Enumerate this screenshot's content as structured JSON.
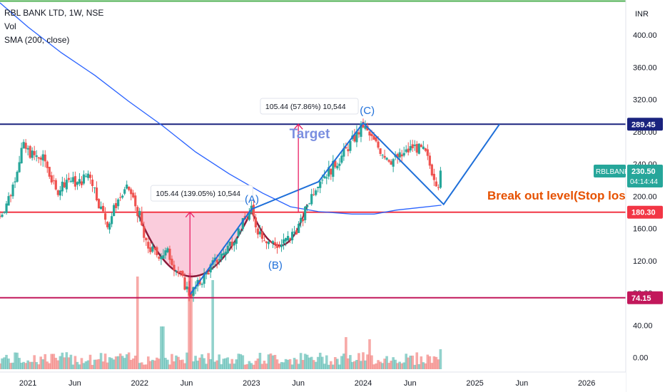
{
  "legend": {
    "symbol_line": "RBL BANK LTD, 1W, NSE",
    "vol_label": "Vol",
    "sma_label": "SMA (200, close)"
  },
  "currency": "INR",
  "colors": {
    "up": "#26a69a",
    "down": "#ef5350",
    "sma": "#2962ff",
    "resistance": "#1a237e",
    "breakout": "#f23645",
    "support": "#c2185b",
    "cup_fill": "#f8bbd0",
    "pattern_line": "#1e6fd9",
    "breakout_text": "#e65100"
  },
  "chart_data": {
    "type": "candlestick",
    "y_axis": {
      "min": -18,
      "max": 440,
      "ticks": [
        0,
        40,
        80,
        120,
        160,
        200,
        240,
        280,
        320,
        360,
        400
      ],
      "tick_labels": [
        "0.00",
        "40.00",
        "80.00",
        "120.00",
        "160.00",
        "200.00",
        "240.00",
        "280.00",
        "320.00",
        "360.00",
        "400.00"
      ]
    },
    "x_axis": {
      "start": 2020.75,
      "end": 2026.35,
      "ticks": [
        2021.0,
        2021.42,
        2022.0,
        2022.42,
        2023.0,
        2023.42,
        2024.0,
        2024.42,
        2025.0,
        2025.42,
        2026.0
      ],
      "tick_labels": [
        "2021",
        "Jun",
        "2022",
        "Jun",
        "2023",
        "Jun",
        "2024",
        "Jun",
        "2025",
        "Jun",
        "2026"
      ]
    },
    "price_path": [
      [
        2020.75,
        175
      ],
      [
        2020.85,
        205
      ],
      [
        2020.95,
        262
      ],
      [
        2021.05,
        250
      ],
      [
        2021.15,
        245
      ],
      [
        2021.25,
        205
      ],
      [
        2021.35,
        222
      ],
      [
        2021.45,
        215
      ],
      [
        2021.55,
        230
      ],
      [
        2021.65,
        185
      ],
      [
        2021.72,
        165
      ],
      [
        2021.8,
        195
      ],
      [
        2021.9,
        210
      ],
      [
        2022.0,
        175
      ],
      [
        2022.05,
        140
      ],
      [
        2022.15,
        128
      ],
      [
        2022.25,
        130
      ],
      [
        2022.35,
        104
      ],
      [
        2022.45,
        78
      ],
      [
        2022.55,
        95
      ],
      [
        2022.65,
        115
      ],
      [
        2022.75,
        130
      ],
      [
        2022.85,
        150
      ],
      [
        2022.95,
        172
      ],
      [
        2023.0,
        182
      ],
      [
        2023.05,
        160
      ],
      [
        2023.15,
        145
      ],
      [
        2023.25,
        138
      ],
      [
        2023.35,
        150
      ],
      [
        2023.45,
        168
      ],
      [
        2023.5,
        190
      ],
      [
        2023.6,
        220
      ],
      [
        2023.7,
        232
      ],
      [
        2023.8,
        248
      ],
      [
        2023.9,
        268
      ],
      [
        2024.0,
        288
      ],
      [
        2024.05,
        276
      ],
      [
        2024.15,
        258
      ],
      [
        2024.25,
        245
      ],
      [
        2024.35,
        250
      ],
      [
        2024.45,
        262
      ],
      [
        2024.55,
        255
      ],
      [
        2024.62,
        230
      ],
      [
        2024.67,
        214
      ],
      [
        2024.7,
        230.5
      ]
    ],
    "sma": [
      [
        2020.75,
        440
      ],
      [
        2021.0,
        410
      ],
      [
        2021.3,
        378
      ],
      [
        2021.6,
        350
      ],
      [
        2021.9,
        318
      ],
      [
        2022.2,
        288
      ],
      [
        2022.5,
        255
      ],
      [
        2022.8,
        228
      ],
      [
        2023.1,
        204
      ],
      [
        2023.35,
        187
      ],
      [
        2023.6,
        181
      ],
      [
        2023.9,
        178
      ],
      [
        2024.1,
        178
      ],
      [
        2024.3,
        183
      ],
      [
        2024.5,
        186
      ],
      [
        2024.7,
        189
      ]
    ],
    "levels": [
      {
        "name": "resistance",
        "value": 289.45,
        "label": "289.45"
      },
      {
        "name": "breakout",
        "value": 180.3,
        "label": "180.30"
      },
      {
        "name": "support",
        "value": 74.15,
        "label": "74.15"
      }
    ],
    "last_price": {
      "label": "RBLBANK",
      "value": "230.50",
      "time": "04:14:44"
    },
    "annotations": {
      "cup_measure": "105.44 (139.05%) 10,544",
      "target_measure": "105.44 (57.86%) 10,544",
      "target_label": "Target",
      "point_a": "(A)",
      "point_b": "(B)",
      "point_c": "(C)",
      "breakout_label": "Break out level(Stop loss)"
    }
  }
}
